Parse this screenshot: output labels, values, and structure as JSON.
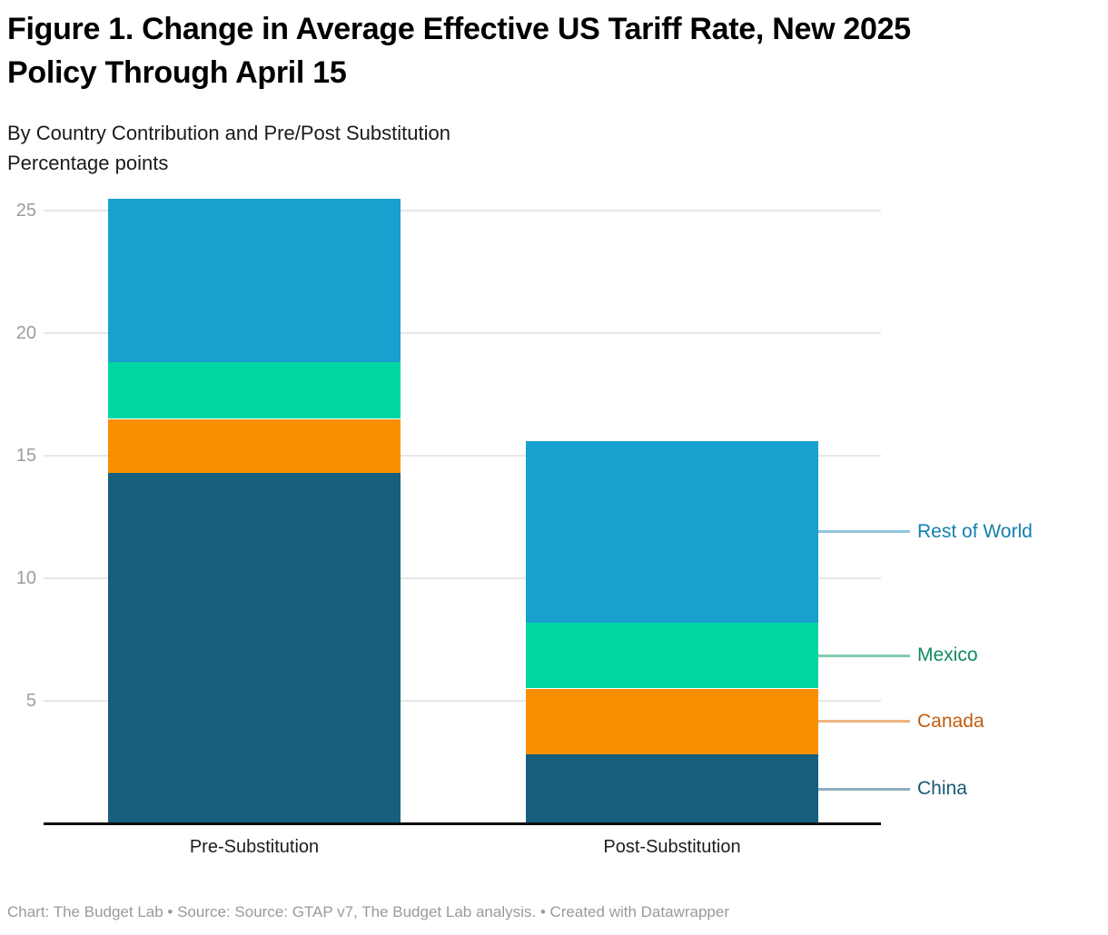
{
  "header": {
    "title": "Figure 1. Change in Average Effective US Tariff Rate, New 2025 Policy Through April 15",
    "subtitle": "By Country Contribution and Pre/Post Substitution",
    "unit_label": "Percentage points"
  },
  "chart_data": {
    "type": "bar",
    "stacked": true,
    "title": "Figure 1. Change in Average Effective US Tariff Rate, New 2025 Policy Through April 15",
    "subtitle": "By Country Contribution and Pre/Post Substitution",
    "ylabel": "Percentage points",
    "xlabel": "",
    "categories": [
      "Pre-Substitution",
      "Post-Substitution"
    ],
    "series": [
      {
        "name": "China",
        "values": [
          14.3,
          2.8
        ],
        "color": "#165F7D",
        "label_color": "#1A5876",
        "leader_color": "#8FAFC0"
      },
      {
        "name": "Canada",
        "values": [
          2.2,
          2.7
        ],
        "color": "#F98F00",
        "label_color": "#C25C0E",
        "leader_color": "#EDB582"
      },
      {
        "name": "Mexico",
        "values": [
          2.3,
          2.7
        ],
        "color": "#00D8A1",
        "label_color": "#0F8B60",
        "leader_color": "#84CBAD"
      },
      {
        "name": "Rest of World",
        "values": [
          6.7,
          7.4
        ],
        "color": "#18A0CE",
        "label_color": "#157FAE",
        "leader_color": "#92C6DE"
      }
    ],
    "ylim": [
      0,
      25.8
    ],
    "yticks": [
      5,
      10,
      15,
      20,
      25
    ],
    "grid": true,
    "legend_position": "right"
  },
  "footer": {
    "text": "Chart: The Budget Lab • Source: Source: GTAP v7, The Budget Lab analysis. • Created with Datawrapper"
  }
}
